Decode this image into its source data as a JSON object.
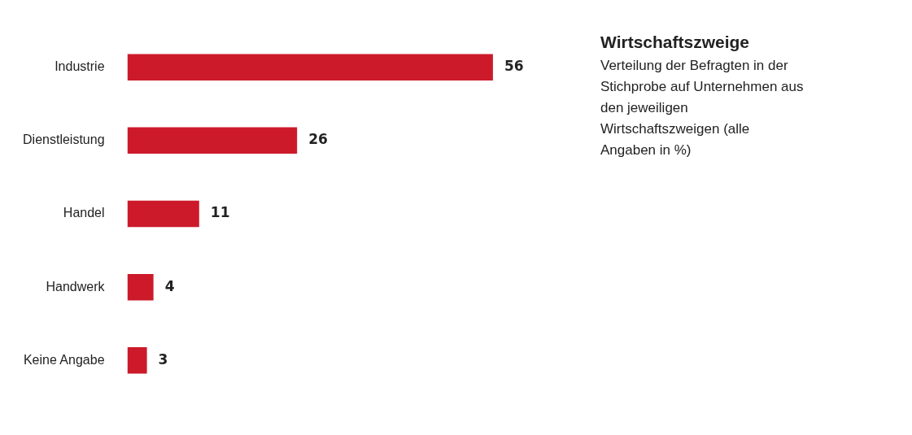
{
  "chart_data": {
    "type": "bar",
    "orientation": "horizontal",
    "title": "Wirtschaftszweige",
    "subtitle": "Verteilung der Befragten in der Stichprobe auf Unternehmen aus den jeweiligen Wirtschaftszweigen (alle Angaben in %)",
    "categories": [
      "Industrie",
      "Dienstleistung",
      "Handel",
      "Handwerk",
      "Keine Angabe"
    ],
    "values": [
      56,
      26,
      11,
      4,
      3
    ],
    "color": "#cc1a2b",
    "data_labels": true,
    "tick_labels": "y"
  }
}
